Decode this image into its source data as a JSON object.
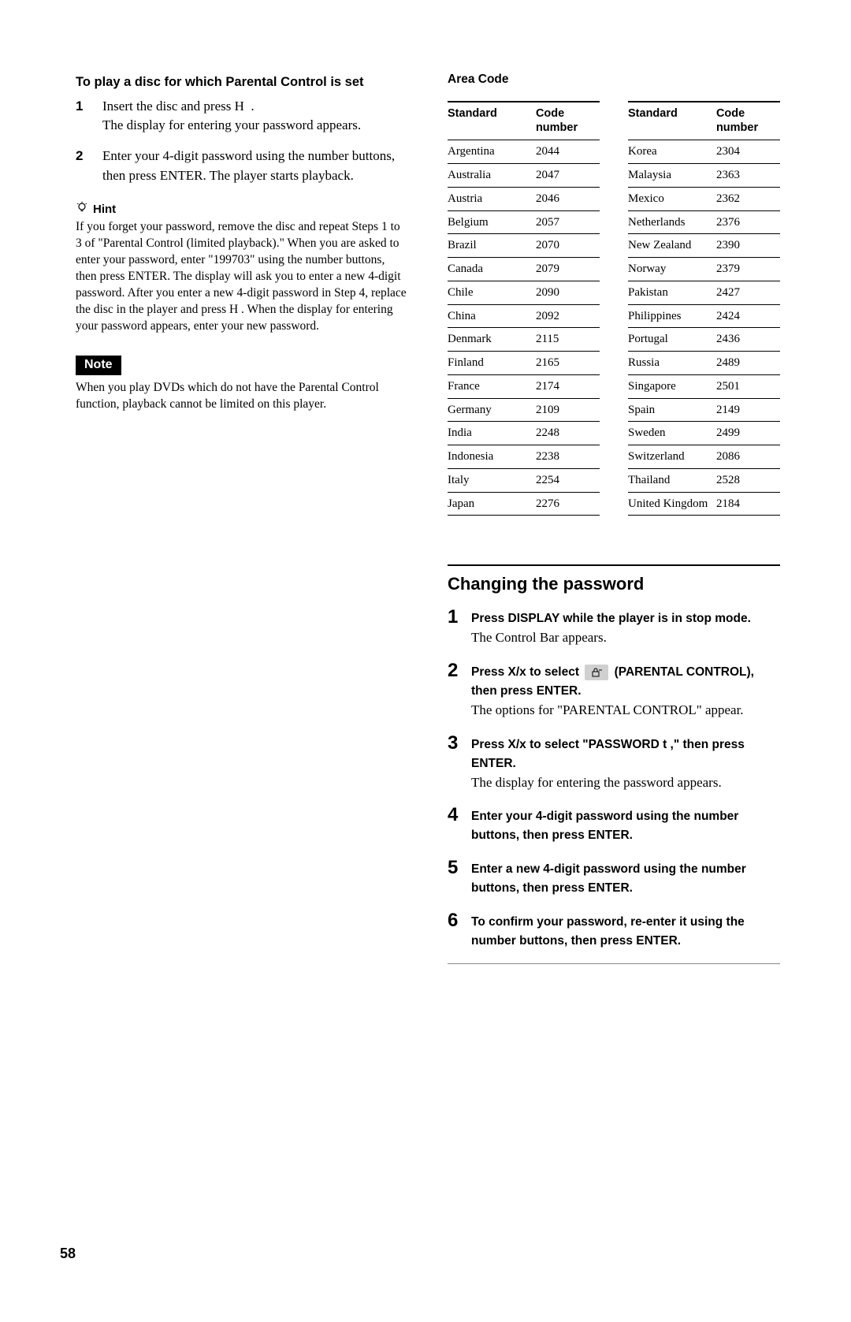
{
  "left": {
    "heading": "To play a disc for which Parental Control is set",
    "steps": [
      {
        "num": "1",
        "text": "Insert the disc and press H .\nThe display for entering your password appears."
      },
      {
        "num": "2",
        "text": "Enter your 4-digit password using the number buttons, then press ENTER. The player starts playback."
      }
    ],
    "hint_label": "Hint",
    "hint_text": "If you forget your password, remove the disc and repeat Steps 1 to 3 of \"Parental Control (limited playback).\" When you are asked to enter your password, enter \"199703\" using the number buttons, then press ENTER. The display will ask you to enter a new 4-digit password. After you enter a new 4-digit password in Step 4, replace the disc in the player and press H . When the display for entering your password appears, enter your new password.",
    "note_label": "Note",
    "note_text": "When you play DVDs which do not have the Parental Control function, playback cannot be limited on this player."
  },
  "area": {
    "title": "Area Code",
    "headers": {
      "standard": "Standard",
      "code": "Code number"
    },
    "table_left": [
      [
        "Argentina",
        "2044"
      ],
      [
        "Australia",
        "2047"
      ],
      [
        "Austria",
        "2046"
      ],
      [
        "Belgium",
        "2057"
      ],
      [
        "Brazil",
        "2070"
      ],
      [
        "Canada",
        "2079"
      ],
      [
        "Chile",
        "2090"
      ],
      [
        "China",
        "2092"
      ],
      [
        "Denmark",
        "2115"
      ],
      [
        "Finland",
        "2165"
      ],
      [
        "France",
        "2174"
      ],
      [
        "Germany",
        "2109"
      ],
      [
        "India",
        "2248"
      ],
      [
        "Indonesia",
        "2238"
      ],
      [
        "Italy",
        "2254"
      ],
      [
        "Japan",
        "2276"
      ]
    ],
    "table_right": [
      [
        "Korea",
        "2304"
      ],
      [
        "Malaysia",
        "2363"
      ],
      [
        "Mexico",
        "2362"
      ],
      [
        "Netherlands",
        "2376"
      ],
      [
        "New Zealand",
        "2390"
      ],
      [
        "Norway",
        "2379"
      ],
      [
        "Pakistan",
        "2427"
      ],
      [
        "Philippines",
        "2424"
      ],
      [
        "Portugal",
        "2436"
      ],
      [
        "Russia",
        "2489"
      ],
      [
        "Singapore",
        "2501"
      ],
      [
        "Spain",
        "2149"
      ],
      [
        "Sweden",
        "2499"
      ],
      [
        "Switzerland",
        "2086"
      ],
      [
        "Thailand",
        "2528"
      ],
      [
        "United Kingdom",
        "2184"
      ]
    ]
  },
  "changing": {
    "title": "Changing the password",
    "steps": [
      {
        "num": "1",
        "bold": "Press DISPLAY while the player is in stop mode.",
        "plain": "The Control Bar appears."
      },
      {
        "num": "2",
        "bold_pre": "Press X/x to select ",
        "bold_post": " (PARENTAL CONTROL), then press ENTER.",
        "plain": "The options for \"PARENTAL CONTROL\" appear.",
        "has_icon": true
      },
      {
        "num": "3",
        "bold": "Press X/x to select \"PASSWORD t ,\" then press ENTER.",
        "plain": "The display for entering the password appears."
      },
      {
        "num": "4",
        "bold": "Enter your 4-digit password using the number buttons, then press ENTER."
      },
      {
        "num": "5",
        "bold": "Enter a new 4-digit password using the number buttons, then press ENTER."
      },
      {
        "num": "6",
        "bold": "To confirm your password, re-enter it using the number buttons, then press ENTER."
      }
    ]
  },
  "page_number": "58"
}
